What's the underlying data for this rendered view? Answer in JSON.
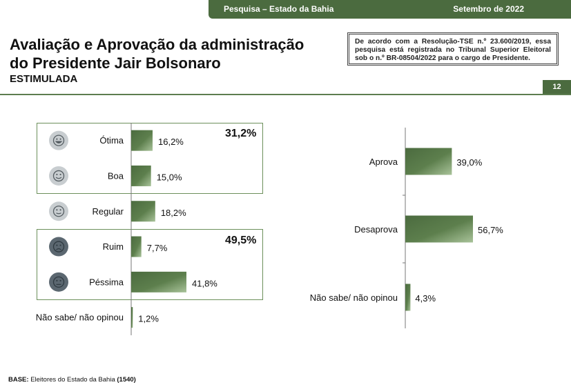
{
  "header": {
    "survey": "Pesquisa – Estado da Bahia",
    "date": "Setembro de 2022",
    "page": "12"
  },
  "title_line1": "Avaliação e Aprovação da administração",
  "title_line2": "do Presidente Jair Bolsonaro",
  "subtitle": "ESTIMULADA",
  "note": "De acordo com a Resolução-TSE n.º 23.600/2019, essa pesquisa está registrada no Tribunal Superior Eleitoral sob o n.º BR-08504/2022 para o cargo de Presidente.",
  "groups": {
    "positive_total": "31,2%",
    "negative_total": "49,5%"
  },
  "base": {
    "label": "BASE:",
    "text": " Eleitores do Estado da Bahia ",
    "count": "(1540)"
  },
  "colors": {
    "bar": "#4b6b3f",
    "bar_light": "#a9c39a",
    "box": "#6b8f5a"
  },
  "chart_data": [
    {
      "type": "bar",
      "orientation": "horizontal",
      "categories": [
        "Ótima",
        "Boa",
        "Regular",
        "Ruim",
        "Péssima",
        "Não sabe/ não opinou"
      ],
      "values": [
        16.2,
        15.0,
        18.2,
        7.7,
        41.8,
        1.2
      ],
      "labels": [
        "16,2%",
        "15,0%",
        "18,2%",
        "7,7%",
        "41,8%",
        "1,2%"
      ],
      "icons": [
        "face-very-happy-icon",
        "face-happy-icon",
        "face-neutral-smile-icon",
        "face-sad-icon",
        "face-very-sad-icon",
        ""
      ],
      "xlim": [
        0,
        50
      ],
      "grid": false
    },
    {
      "type": "bar",
      "orientation": "horizontal",
      "categories": [
        "Aprova",
        "Desaprova",
        "Não sabe/ não opinou"
      ],
      "values": [
        39.0,
        56.7,
        4.3
      ],
      "labels": [
        "39,0%",
        "56,7%",
        "4,3%"
      ],
      "xlim": [
        0,
        80
      ],
      "grid": false
    }
  ]
}
